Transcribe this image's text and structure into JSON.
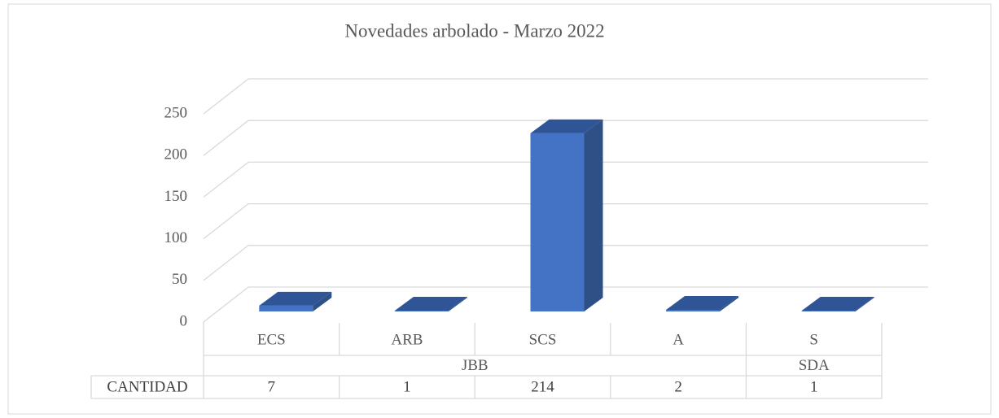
{
  "chart_data": {
    "type": "bar3d",
    "title": "Novedades arbolado - Marzo 2022",
    "categories": [
      "ECS",
      "ARB",
      "SCS",
      "A",
      "S"
    ],
    "groups": [
      {
        "name": "JBB",
        "categories": [
          "ECS",
          "ARB",
          "SCS",
          "A"
        ]
      },
      {
        "name": "SDA",
        "categories": [
          "S"
        ]
      }
    ],
    "series": [
      {
        "name": "CANTIDAD",
        "color": "#4472c4",
        "values": [
          7,
          1,
          214,
          2,
          1
        ]
      }
    ],
    "ylim": [
      0,
      250
    ],
    "yticks": [
      0,
      50,
      100,
      150,
      200,
      250
    ],
    "grid": true,
    "data_table": true
  }
}
